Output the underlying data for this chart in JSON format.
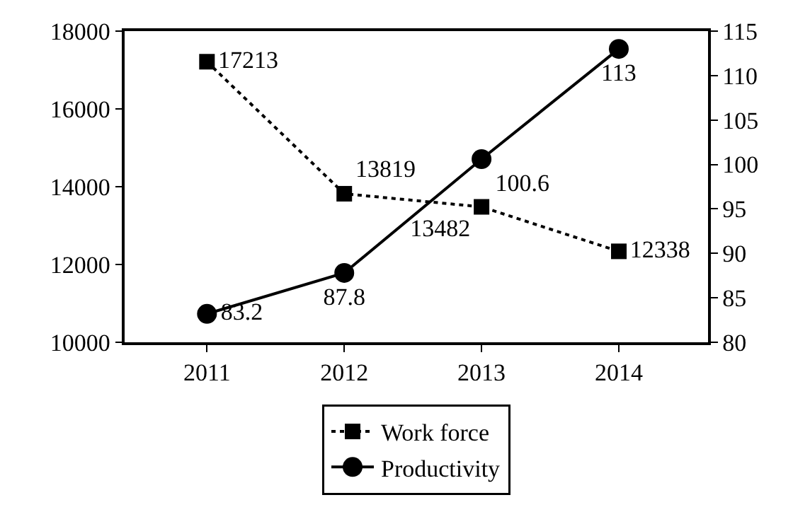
{
  "chart_data": {
    "type": "line",
    "categories": [
      "2011",
      "2012",
      "2013",
      "2014"
    ],
    "series": [
      {
        "name": "Work force",
        "color": "#000000",
        "values": [
          17213,
          13819,
          13482,
          12338
        ],
        "marker": "square",
        "line_style": "dotted"
      },
      {
        "name": "Productivity",
        "color": "#000000",
        "values": [
          83.2,
          87.8,
          100.6,
          113
        ],
        "marker": "circle",
        "line_style": "solid",
        "axis": "y2"
      }
    ],
    "ylim": [
      10000,
      18000
    ],
    "yticks": [
      10000,
      12000,
      14000,
      16000,
      18000
    ],
    "y2lim": [
      80,
      115
    ],
    "y2ticks": [
      80,
      85,
      90,
      95,
      100,
      105,
      110,
      115
    ],
    "data_labels": true,
    "grid": false,
    "legend": "bottom"
  }
}
